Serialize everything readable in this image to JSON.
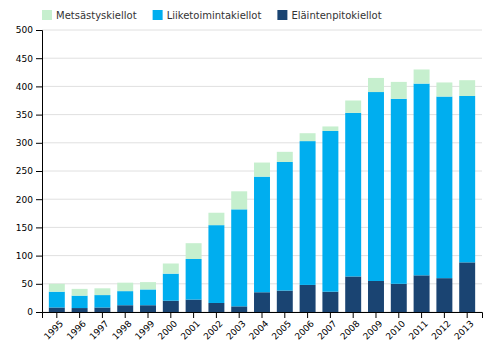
{
  "chart_data": {
    "type": "bar",
    "stacked": true,
    "categories": [
      "1995",
      "1996",
      "1997",
      "1998",
      "1999",
      "2000",
      "2001",
      "2002",
      "2003",
      "2004",
      "2005",
      "2006",
      "2007",
      "2008",
      "2009",
      "2010",
      "2011",
      "2012",
      "2013"
    ],
    "series": [
      {
        "name": "Eläintenpitokiellot",
        "color": "#1a4472",
        "values": [
          8,
          7,
          8,
          12,
          12,
          20,
          22,
          16,
          10,
          35,
          38,
          48,
          36,
          63,
          55,
          50,
          65,
          60,
          88
        ]
      },
      {
        "name": "Liiketoimintakiellot",
        "color": "#00aeef",
        "values": [
          28,
          22,
          22,
          25,
          28,
          48,
          72,
          138,
          172,
          205,
          228,
          255,
          285,
          290,
          335,
          328,
          340,
          322,
          295
        ]
      },
      {
        "name": "Metsästyskiellot",
        "color": "#c6efce",
        "values": [
          14,
          12,
          12,
          15,
          13,
          18,
          28,
          22,
          32,
          25,
          18,
          14,
          8,
          22,
          25,
          30,
          25,
          25,
          28
        ]
      }
    ],
    "ylim": [
      0,
      500
    ],
    "yticks": [
      0,
      50,
      100,
      150,
      200,
      250,
      300,
      350,
      400,
      450,
      500
    ],
    "grid": true,
    "legend": "upper left"
  }
}
